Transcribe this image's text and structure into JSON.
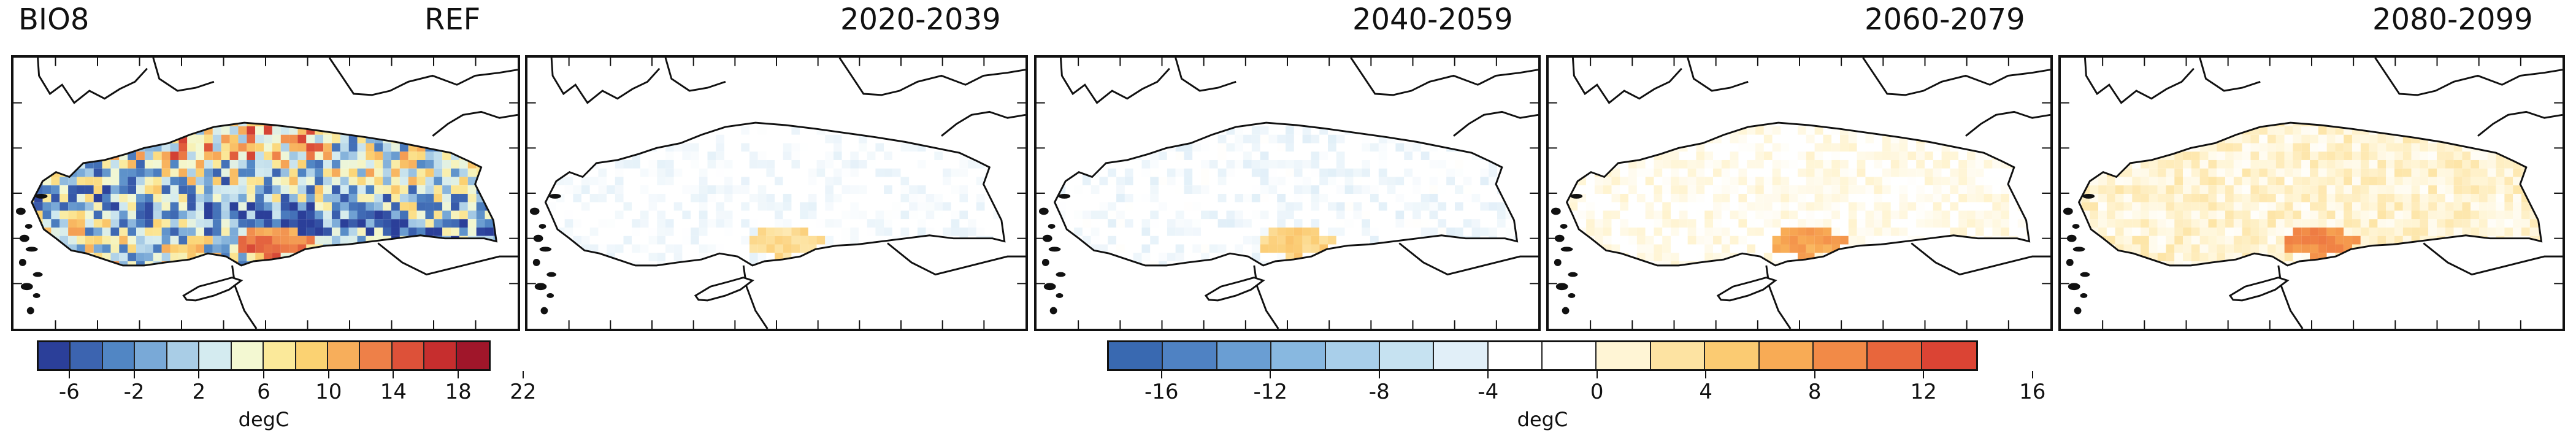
{
  "figure": {
    "panels": [
      {
        "id": "ref",
        "variable": "BIO8",
        "period": "REF"
      },
      {
        "id": "p1",
        "variable": "",
        "period": "2020-2039"
      },
      {
        "id": "p2",
        "variable": "",
        "period": "2040-2059"
      },
      {
        "id": "p3",
        "variable": "",
        "period": "2060-2079"
      },
      {
        "id": "p4",
        "variable": "",
        "period": "2080-2099"
      }
    ],
    "colorbars": [
      {
        "id": "absolute",
        "unit": "degC",
        "tick_labels": [
          "-6",
          "-2",
          "2",
          "6",
          "10",
          "14",
          "18",
          "22"
        ],
        "colors": [
          "#2b3f99",
          "#3c64b0",
          "#5186c4",
          "#79a9d7",
          "#a9cde6",
          "#d4ebf0",
          "#f3f8d2",
          "#fbe99a",
          "#fbd272",
          "#f7ae5b",
          "#ee8048",
          "#dd5139",
          "#c62e2e",
          "#a0162a"
        ]
      },
      {
        "id": "change",
        "unit": "degC",
        "tick_labels": [
          "-16",
          "-12",
          "-8",
          "-4",
          "0",
          "4",
          "8",
          "12",
          "16"
        ],
        "colors": [
          "#3969b1",
          "#4f82c3",
          "#6a9ed3",
          "#88b8e0",
          "#a9cfea",
          "#c6e2f1",
          "#e1eff8",
          "#ffffff",
          "#ffffff",
          "#fff5d5",
          "#fde3a2",
          "#fbcb72",
          "#f8ab55",
          "#f28a47",
          "#e8663c",
          "#db4434"
        ]
      }
    ]
  }
}
